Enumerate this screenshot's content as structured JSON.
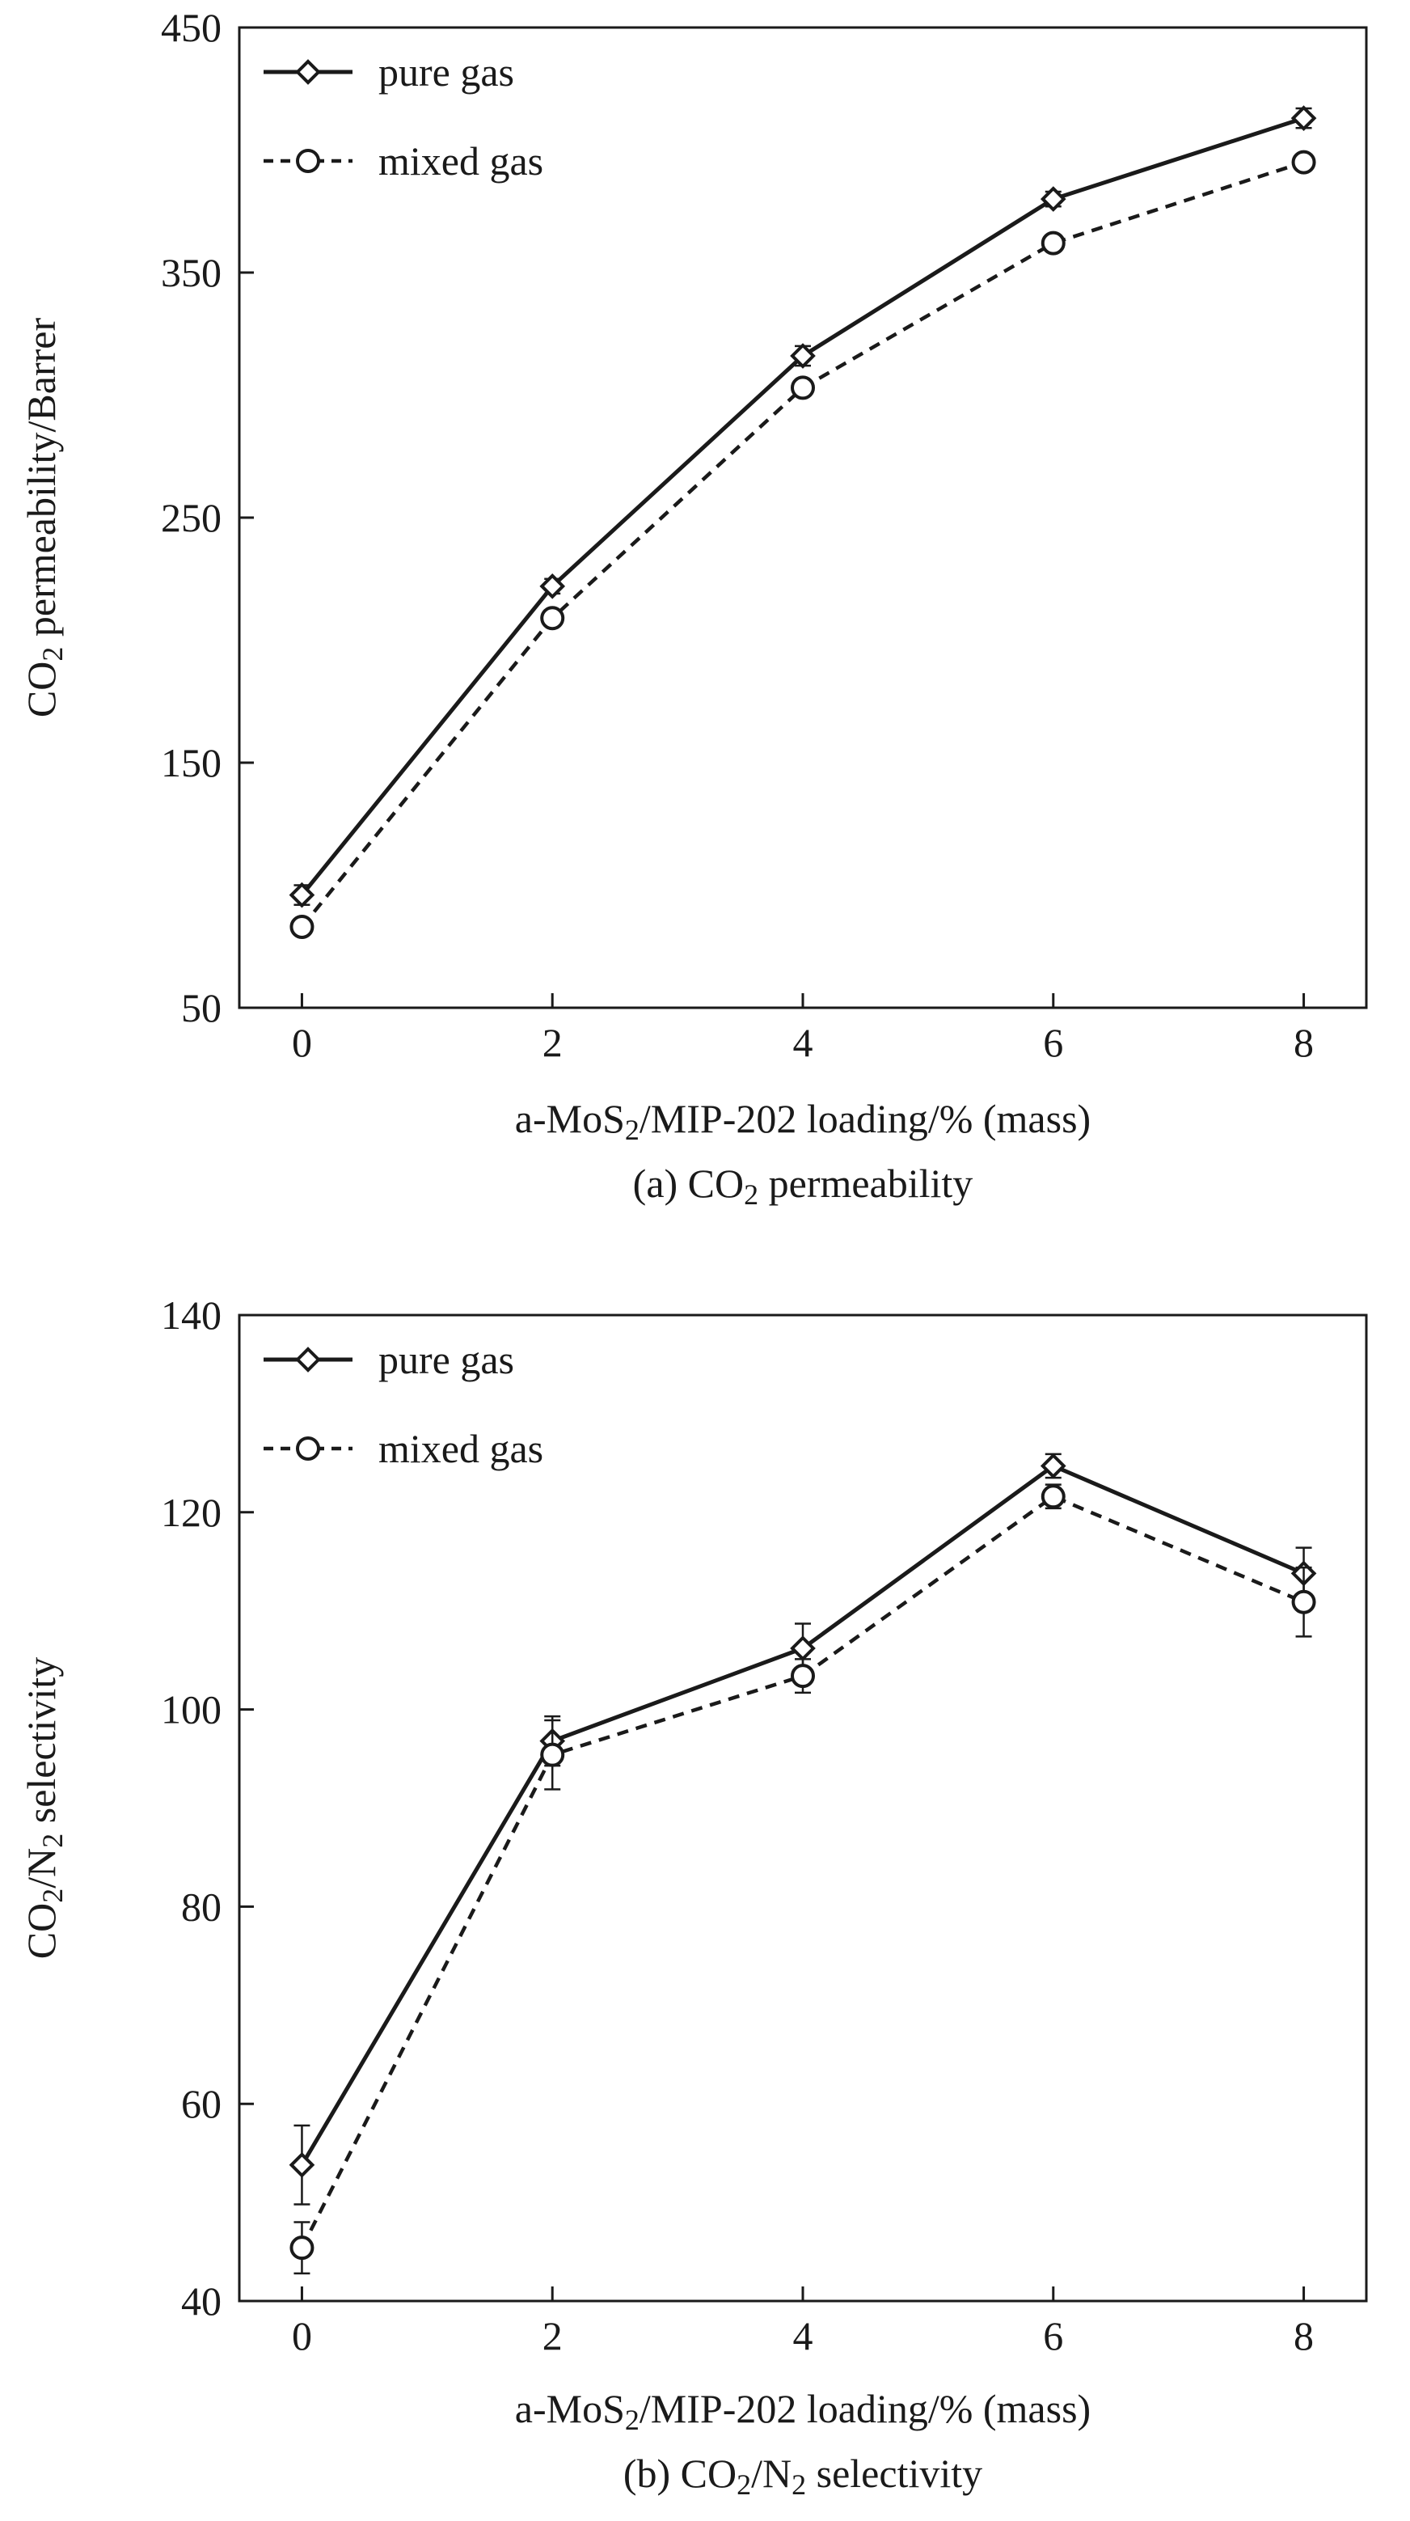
{
  "chart_data": [
    {
      "type": "line",
      "title": "",
      "caption_prefix": "(a) CO",
      "caption_sub": "2",
      "caption_suffix": " permeability",
      "xlabel_prefix": "a-MoS",
      "xlabel_sub": "2",
      "xlabel_suffix": "/MIP-202 loading/% (mass)",
      "ylabel_prefix": "CO",
      "ylabel_sub": "2",
      "ylabel_suffix": " permeability/Barrer",
      "x": [
        0,
        2,
        4,
        6,
        8
      ],
      "xlim": [
        -0.5,
        8.5
      ],
      "ylim": [
        50,
        450
      ],
      "xticks": [
        "0",
        "2",
        "4",
        "6",
        "8"
      ],
      "yticks": [
        "50",
        "150",
        "250",
        "350",
        "450"
      ],
      "grid": false,
      "legend_position": "top-left",
      "series": [
        {
          "name": "pure gas",
          "marker": "diamond",
          "dash": "solid",
          "values": [
            96,
            222,
            316,
            380,
            413
          ],
          "errors": [
            4,
            3,
            4,
            3,
            4
          ]
        },
        {
          "name": "mixed gas",
          "marker": "circle",
          "dash": "dashed",
          "values": [
            83,
            209,
            303,
            362,
            395
          ],
          "errors": [
            3,
            3,
            3,
            3,
            3
          ]
        }
      ]
    },
    {
      "type": "line",
      "title": "",
      "caption_prefix": "(b) CO",
      "caption_sub": "2",
      "caption_mid": "/N",
      "caption_sub2": "2",
      "caption_suffix": " selectivity",
      "xlabel_prefix": "a-MoS",
      "xlabel_sub": "2",
      "xlabel_suffix": "/MIP-202 loading/% (mass)",
      "ylabel_prefix": "CO",
      "ylabel_sub": "2",
      "ylabel_mid": "/N",
      "ylabel_sub2": "2",
      "ylabel_suffix": " selectivity",
      "x": [
        0,
        2,
        4,
        6,
        8
      ],
      "xlim": [
        -0.5,
        8.5
      ],
      "ylim": [
        40,
        140
      ],
      "xticks": [
        "0",
        "2",
        "4",
        "6",
        "8"
      ],
      "yticks": [
        "40",
        "60",
        "80",
        "100",
        "120",
        "140"
      ],
      "grid": false,
      "legend_position": "top-left",
      "series": [
        {
          "name": "pure gas",
          "marker": "diamond",
          "dash": "solid",
          "values": [
            53.8,
            96.8,
            106.2,
            124.7,
            113.8
          ],
          "errors": [
            4,
            2.5,
            2.5,
            1.2,
            2.6
          ]
        },
        {
          "name": "mixed gas",
          "marker": "circle",
          "dash": "dashed",
          "values": [
            45.4,
            95.4,
            103.4,
            121.6,
            110.9
          ],
          "errors": [
            2.6,
            3.5,
            1.7,
            1.2,
            3.5
          ]
        }
      ]
    }
  ]
}
